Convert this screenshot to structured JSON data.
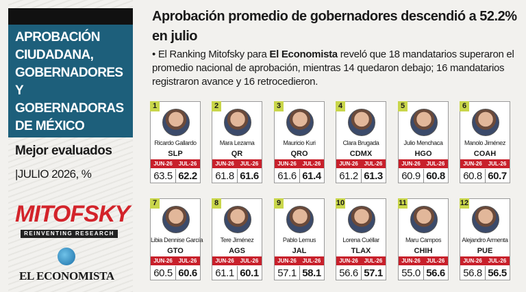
{
  "sidebar": {
    "title": "APROBACIÓN CIUDADANA, GOBERNADORES Y GOBERNADORAS DE MÉXICO",
    "subtitle": "Mejor evaluados",
    "date": "|JULIO 2026, %",
    "brand": "MITOFSKY",
    "brand_tagline": "REINVENTING RESEARCH",
    "publisher": "EL ECONOMISTA"
  },
  "header": {
    "title": "Aprobación promedio de gobernadores descendió a 52.2% en julio",
    "body_pre": "• El Ranking Mitofsky para ",
    "body_bold": "El Economista",
    "body_post": " reveló que 18 mandatarios superaron el promedio nacional de aprobación, mientras 14 quedaron debajo; 16 mandatarios registraron avance y 16 retrocedieron."
  },
  "columns": [
    "JUN-26",
    "JUL-26"
  ],
  "cards": [
    {
      "rank": "1",
      "name": "Ricardo Gallardo",
      "state": "SLP",
      "jun": "63.5",
      "jul": "62.2"
    },
    {
      "rank": "2",
      "name": "Mara Lezama",
      "state": "QR",
      "jun": "61.8",
      "jul": "61.6"
    },
    {
      "rank": "3",
      "name": "Mauricio Kuri",
      "state": "QRO",
      "jun": "61.6",
      "jul": "61.4"
    },
    {
      "rank": "4",
      "name": "Clara Brugada",
      "state": "CDMX",
      "jun": "61.2",
      "jul": "61.3"
    },
    {
      "rank": "5",
      "name": "Julio Menchaca",
      "state": "HGO",
      "jun": "60.9",
      "jul": "60.8"
    },
    {
      "rank": "6",
      "name": "Manolo Jiménez",
      "state": "COAH",
      "jun": "60.8",
      "jul": "60.7"
    },
    {
      "rank": "7",
      "name": "Libia Dennise García",
      "state": "GTO",
      "jun": "60.5",
      "jul": "60.6"
    },
    {
      "rank": "8",
      "name": "Tere Jiménez",
      "state": "AGS",
      "jun": "61.1",
      "jul": "60.1"
    },
    {
      "rank": "9",
      "name": "Pablo Lemus",
      "state": "JAL",
      "jun": "57.1",
      "jul": "58.1"
    },
    {
      "rank": "10",
      "name": "Lorena Cuéllar",
      "state": "TLAX",
      "jun": "56.6",
      "jul": "57.1"
    },
    {
      "rank": "11",
      "name": "Maru Campos",
      "state": "CHIH",
      "jun": "55.0",
      "jul": "56.6"
    },
    {
      "rank": "12",
      "name": "Alejandro Armenta",
      "state": "PUE",
      "jun": "56.8",
      "jul": "56.5"
    }
  ]
}
